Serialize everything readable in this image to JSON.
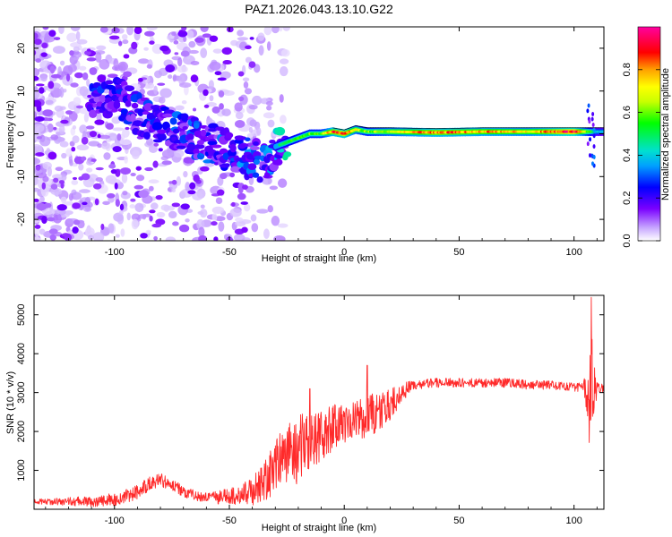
{
  "figure_title": "PAZ1.2026.043.13.10.G22",
  "colors": {
    "snr_line": "#ff2a2a",
    "strong_spec": "#ff1e1e",
    "mid_spec": "#19e6c8",
    "weak_spec": "#6a0dff",
    "faint_spec": "#d9c6ff"
  },
  "chart_data": [
    {
      "type": "heatmap",
      "name": "spectrogram",
      "title": "PAZ1.2026.043.13.10.G22",
      "xlabel": "Height of straight line (km)",
      "ylabel": "Frequency (Hz)",
      "xlim": [
        -135,
        113
      ],
      "ylim": [
        -25,
        25
      ],
      "xticks": [
        -100,
        -50,
        0,
        50,
        100
      ],
      "xtick_labels": [
        "-100",
        "-50",
        "0",
        "50",
        "100"
      ],
      "yticks": [
        -20,
        -10,
        0,
        10,
        20
      ],
      "ytick_labels": [
        "-20",
        "-10",
        "0",
        "10",
        "20"
      ],
      "colorbar": {
        "label": "Normalized spectral amplitude",
        "range": [
          0,
          1
        ],
        "ticks": [
          0.0,
          0.2,
          0.4,
          0.6,
          0.8
        ],
        "tick_labels": [
          "0.0",
          "0.2",
          "0.4",
          "0.6",
          "0.8"
        ],
        "colormap": "rainbow-white-to-magenta"
      },
      "ridge": {
        "description": "frequency of peak spectral amplitude vs height",
        "x": [
          -100,
          -90,
          -80,
          -70,
          -60,
          -50,
          -40,
          -35,
          -30,
          -25,
          -20,
          -15,
          -10,
          -5,
          0,
          5,
          10,
          20,
          40,
          60,
          80,
          100,
          110
        ],
        "y": [
          9,
          5,
          2,
          0,
          -2,
          -4,
          -6,
          -7,
          -3,
          -2,
          -1,
          0,
          0,
          0.5,
          0,
          1,
          0.5,
          0.5,
          0.3,
          0.5,
          0.5,
          0.5,
          0.5
        ],
        "amplitude": [
          0.15,
          0.2,
          0.2,
          0.25,
          0.25,
          0.25,
          0.35,
          0.3,
          0.5,
          0.55,
          0.55,
          0.6,
          0.6,
          0.85,
          0.9,
          0.7,
          0.6,
          0.7,
          0.85,
          0.8,
          0.75,
          0.95,
          0.4
        ]
      }
    },
    {
      "type": "line",
      "name": "snr",
      "title": "",
      "xlabel": "Height of straight line (km)",
      "ylabel": "SNR (10 * v/v)",
      "xlim": [
        -135,
        113
      ],
      "ylim": [
        0,
        5500
      ],
      "xticks": [
        -100,
        -50,
        0,
        50,
        100
      ],
      "xtick_labels": [
        "-100",
        "-50",
        "0",
        "50",
        "100"
      ],
      "yticks": [
        1000,
        2000,
        3000,
        4000,
        5000
      ],
      "ytick_labels": [
        "1000",
        "2000",
        "3000",
        "4000",
        "5000"
      ],
      "envelope": {
        "x": [
          -135,
          -110,
          -100,
          -90,
          -85,
          -80,
          -75,
          -70,
          -65,
          -60,
          -55,
          -50,
          -45,
          -40,
          -35,
          -30,
          -25,
          -20,
          -15,
          -10,
          -5,
          0,
          5,
          10,
          15,
          20,
          25,
          30,
          40,
          50,
          60,
          70,
          80,
          90,
          100,
          104,
          106,
          107,
          108,
          110,
          113
        ],
        "y": [
          200,
          200,
          250,
          450,
          650,
          750,
          650,
          450,
          350,
          300,
          300,
          330,
          400,
          450,
          700,
          1100,
          1400,
          1500,
          1800,
          1900,
          2100,
          2200,
          2300,
          2350,
          2500,
          2700,
          3000,
          3200,
          3250,
          3250,
          3250,
          3250,
          3200,
          3200,
          3150,
          3150,
          2800,
          3500,
          3000,
          3150,
          3100
        ]
      },
      "noise_amplitude": {
        "x": [
          -135,
          -90,
          -60,
          -40,
          -30,
          -20,
          -10,
          0,
          10,
          20,
          30,
          100,
          104,
          106,
          107,
          108,
          110,
          113
        ],
        "y": [
          60,
          200,
          120,
          350,
          700,
          900,
          700,
          500,
          600,
          400,
          120,
          120,
          150,
          800,
          2000,
          1200,
          150,
          100
        ]
      },
      "peak_annotations": [
        {
          "x": 107.5,
          "y": 5450
        },
        {
          "x": 10,
          "y": 3700
        },
        {
          "x": -15,
          "y": 3100
        }
      ]
    }
  ]
}
